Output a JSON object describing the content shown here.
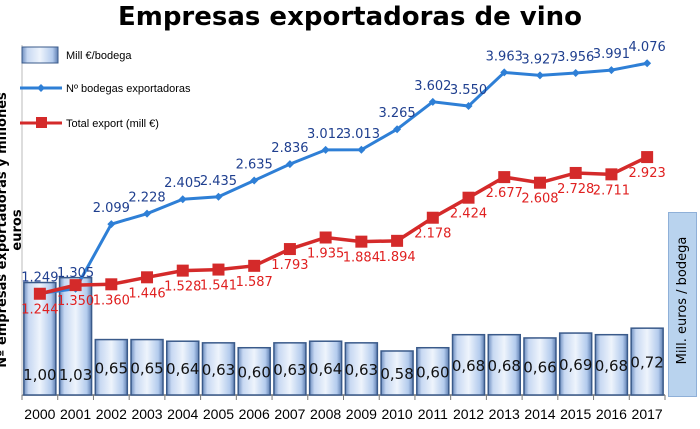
{
  "chart_data": {
    "type": "bar+line",
    "title": "Empresas exportadoras de vino",
    "ylabel": "Nº empresas exportadoras y millones euros",
    "y2label": "Mill. euros / bodega",
    "categories": [
      "2000",
      "2001",
      "2002",
      "2003",
      "2004",
      "2005",
      "2006",
      "2007",
      "2008",
      "2009",
      "2010",
      "2011",
      "2012",
      "2013",
      "2014",
      "2015",
      "2016",
      "2017"
    ],
    "series": [
      {
        "name": "Mill €/bodega",
        "type": "bar",
        "axis": "right",
        "color": "#a9c4ea",
        "values": [
          1.0,
          1.03,
          0.65,
          0.65,
          0.64,
          0.63,
          0.6,
          0.63,
          0.64,
          0.63,
          0.58,
          0.6,
          0.68,
          0.68,
          0.66,
          0.69,
          0.68,
          0.72
        ],
        "labels": [
          "1,00",
          "1,03",
          "0,65",
          "0,65",
          "0,64",
          "0,63",
          "0,60",
          "0,63",
          "0,64",
          "0,63",
          "0,58",
          "0,60",
          "0,68",
          "0,68",
          "0,66",
          "0,69",
          "0,68",
          "0,72"
        ]
      },
      {
        "name": "Nº bodegas exportadoras",
        "type": "line",
        "axis": "left",
        "color": "#2e7fd6",
        "label_color": "#1f3f8f",
        "values": [
          1249,
          1305,
          2099,
          2228,
          2405,
          2435,
          2635,
          2836,
          3012,
          3013,
          3265,
          3602,
          3550,
          3963,
          3927,
          3956,
          3991,
          4076
        ],
        "labels": [
          "1.249",
          "1.305",
          "2.099",
          "2.228",
          "2.405",
          "2.435",
          "2.635",
          "2.836",
          "3.012",
          "3.013",
          "3.265",
          "3.602",
          "3.550",
          "3.963",
          "3.927",
          "3.956",
          "3.991",
          "4.076"
        ]
      },
      {
        "name": "Total export (mill €)",
        "type": "line",
        "axis": "left",
        "color": "#d42a2a",
        "label_color": "#e02020",
        "values": [
          1244,
          1350,
          1360,
          1446,
          1528,
          1541,
          1587,
          1793,
          1935,
          1884,
          1894,
          2178,
          2424,
          2677,
          2608,
          2728,
          2711,
          2923
        ],
        "labels": [
          "1.244",
          "1.350",
          "1.360",
          "1.446",
          "1.528",
          "1.541",
          "1.587",
          "1.793",
          "1.935",
          "1.884",
          "1.894",
          "2.178",
          "2.424",
          "2.677",
          "2.608",
          "2.728",
          "2.711",
          "2.923"
        ]
      }
    ],
    "ylim": [
      0,
      4300
    ],
    "y2lim": [
      0.31,
      1.1
    ],
    "grid": false,
    "legend": "top-left"
  }
}
